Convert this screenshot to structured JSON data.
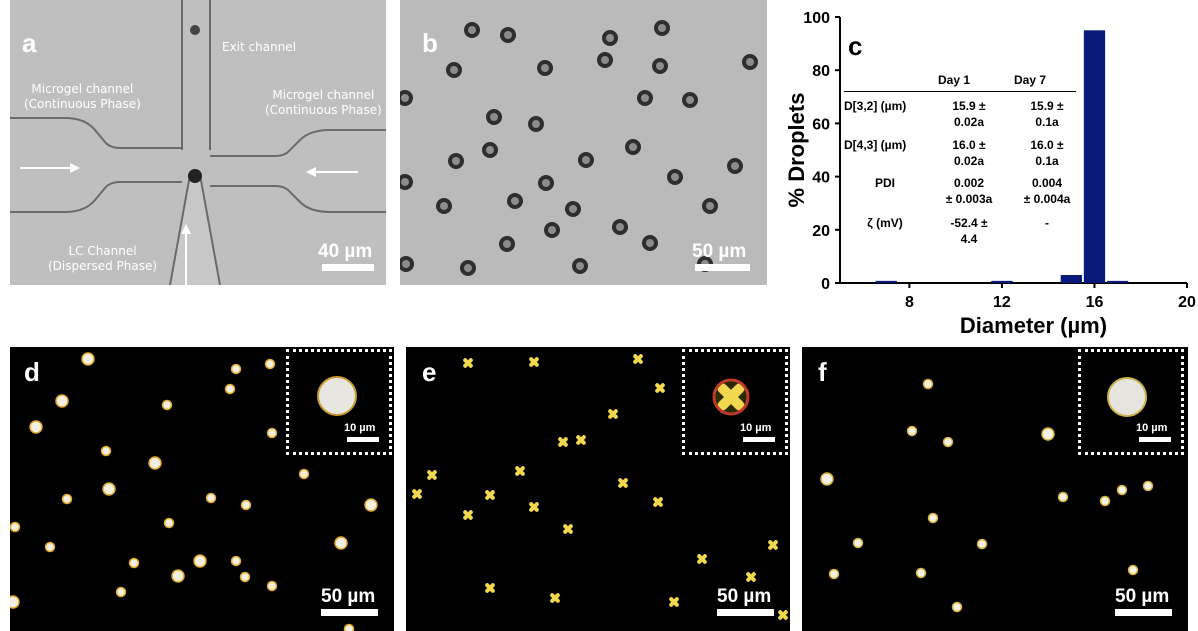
{
  "panels": {
    "a": {
      "label": "a",
      "captions": {
        "exit": "Exit channel",
        "micro_left": "Microgel channel\n(Continuous Phase)",
        "micro_right": "Microgel channel\n(Continuous Phase)",
        "lc": "LC Channel\n(Dispersed Phase)"
      },
      "scale_bar": "40 µm"
    },
    "b": {
      "label": "b",
      "scale_bar": "50 µm"
    },
    "c": {
      "label": "c"
    },
    "d": {
      "label": "d",
      "scale_bar": "50 µm",
      "inset_scale_bar": "10 µm"
    },
    "e": {
      "label": "e",
      "scale_bar": "50 µm",
      "inset_scale_bar": "10 µm"
    },
    "f": {
      "label": "f",
      "scale_bar": "50 µm",
      "inset_scale_bar": "10 µm"
    }
  },
  "table": {
    "headers": [
      "",
      "Day 1",
      "Day 7"
    ],
    "rows": [
      {
        "label": "D[3,2] (µm)",
        "day1": "15.9 ±\n0.02a",
        "day7": "15.9 ±\n0.1a"
      },
      {
        "label": "D[4,3] (µm)",
        "day1": "16.0 ±\n0.02a",
        "day7": "16.0 ±\n0.1a"
      },
      {
        "label": "PDI",
        "day1": "0.002\n± 0.003a",
        "day7": "0.004\n± 0.004a"
      },
      {
        "label": "ζ (mV)",
        "day1": "-52.4 ±\n4.4",
        "day7": "-"
      }
    ]
  },
  "chart_data": {
    "type": "bar",
    "title": "",
    "xlabel": "Diameter (µm)",
    "ylabel": "% Droplets",
    "xlim": [
      5,
      20
    ],
    "ylim": [
      0,
      100
    ],
    "xticks": [
      8,
      12,
      16,
      20
    ],
    "yticks": [
      0,
      20,
      40,
      60,
      80,
      100
    ],
    "bar_width": 1,
    "color": "#0a1a7a",
    "x": [
      7,
      12,
      15,
      16,
      17
    ],
    "values": [
      0.8,
      0.8,
      3,
      95,
      0.8
    ]
  },
  "colors": {
    "bar": "#0a1a7a",
    "panel_bg_dark": "#000000",
    "brightfield_bg": "#b9b9b9"
  }
}
